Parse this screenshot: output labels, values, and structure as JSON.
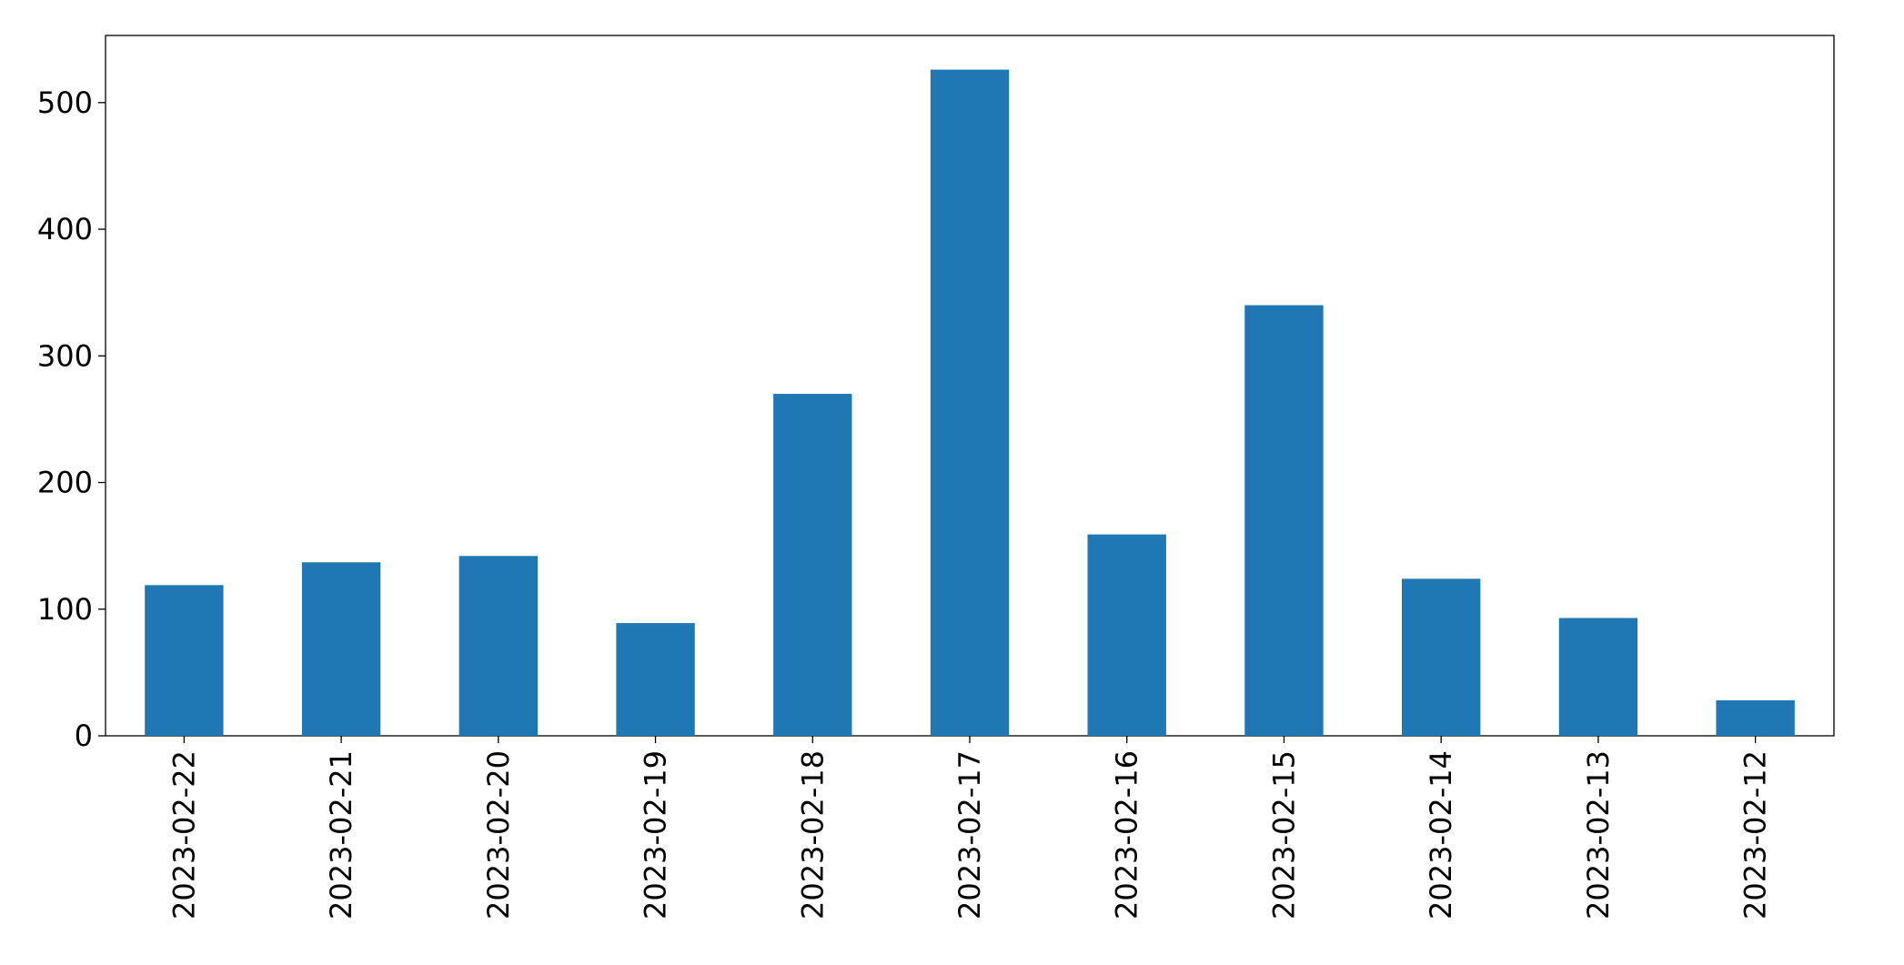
{
  "chart_data": {
    "type": "bar",
    "categories": [
      "2023-02-22",
      "2023-02-21",
      "2023-02-20",
      "2023-02-19",
      "2023-02-18",
      "2023-02-17",
      "2023-02-16",
      "2023-02-15",
      "2023-02-14",
      "2023-02-13",
      "2023-02-12"
    ],
    "values": [
      119,
      137,
      142,
      89,
      270,
      526,
      159,
      340,
      124,
      93,
      28
    ],
    "color": "#1f77b4",
    "ylim": [
      0,
      553
    ],
    "yticks": [
      0,
      100,
      200,
      300,
      400,
      500
    ],
    "grid": false
  }
}
